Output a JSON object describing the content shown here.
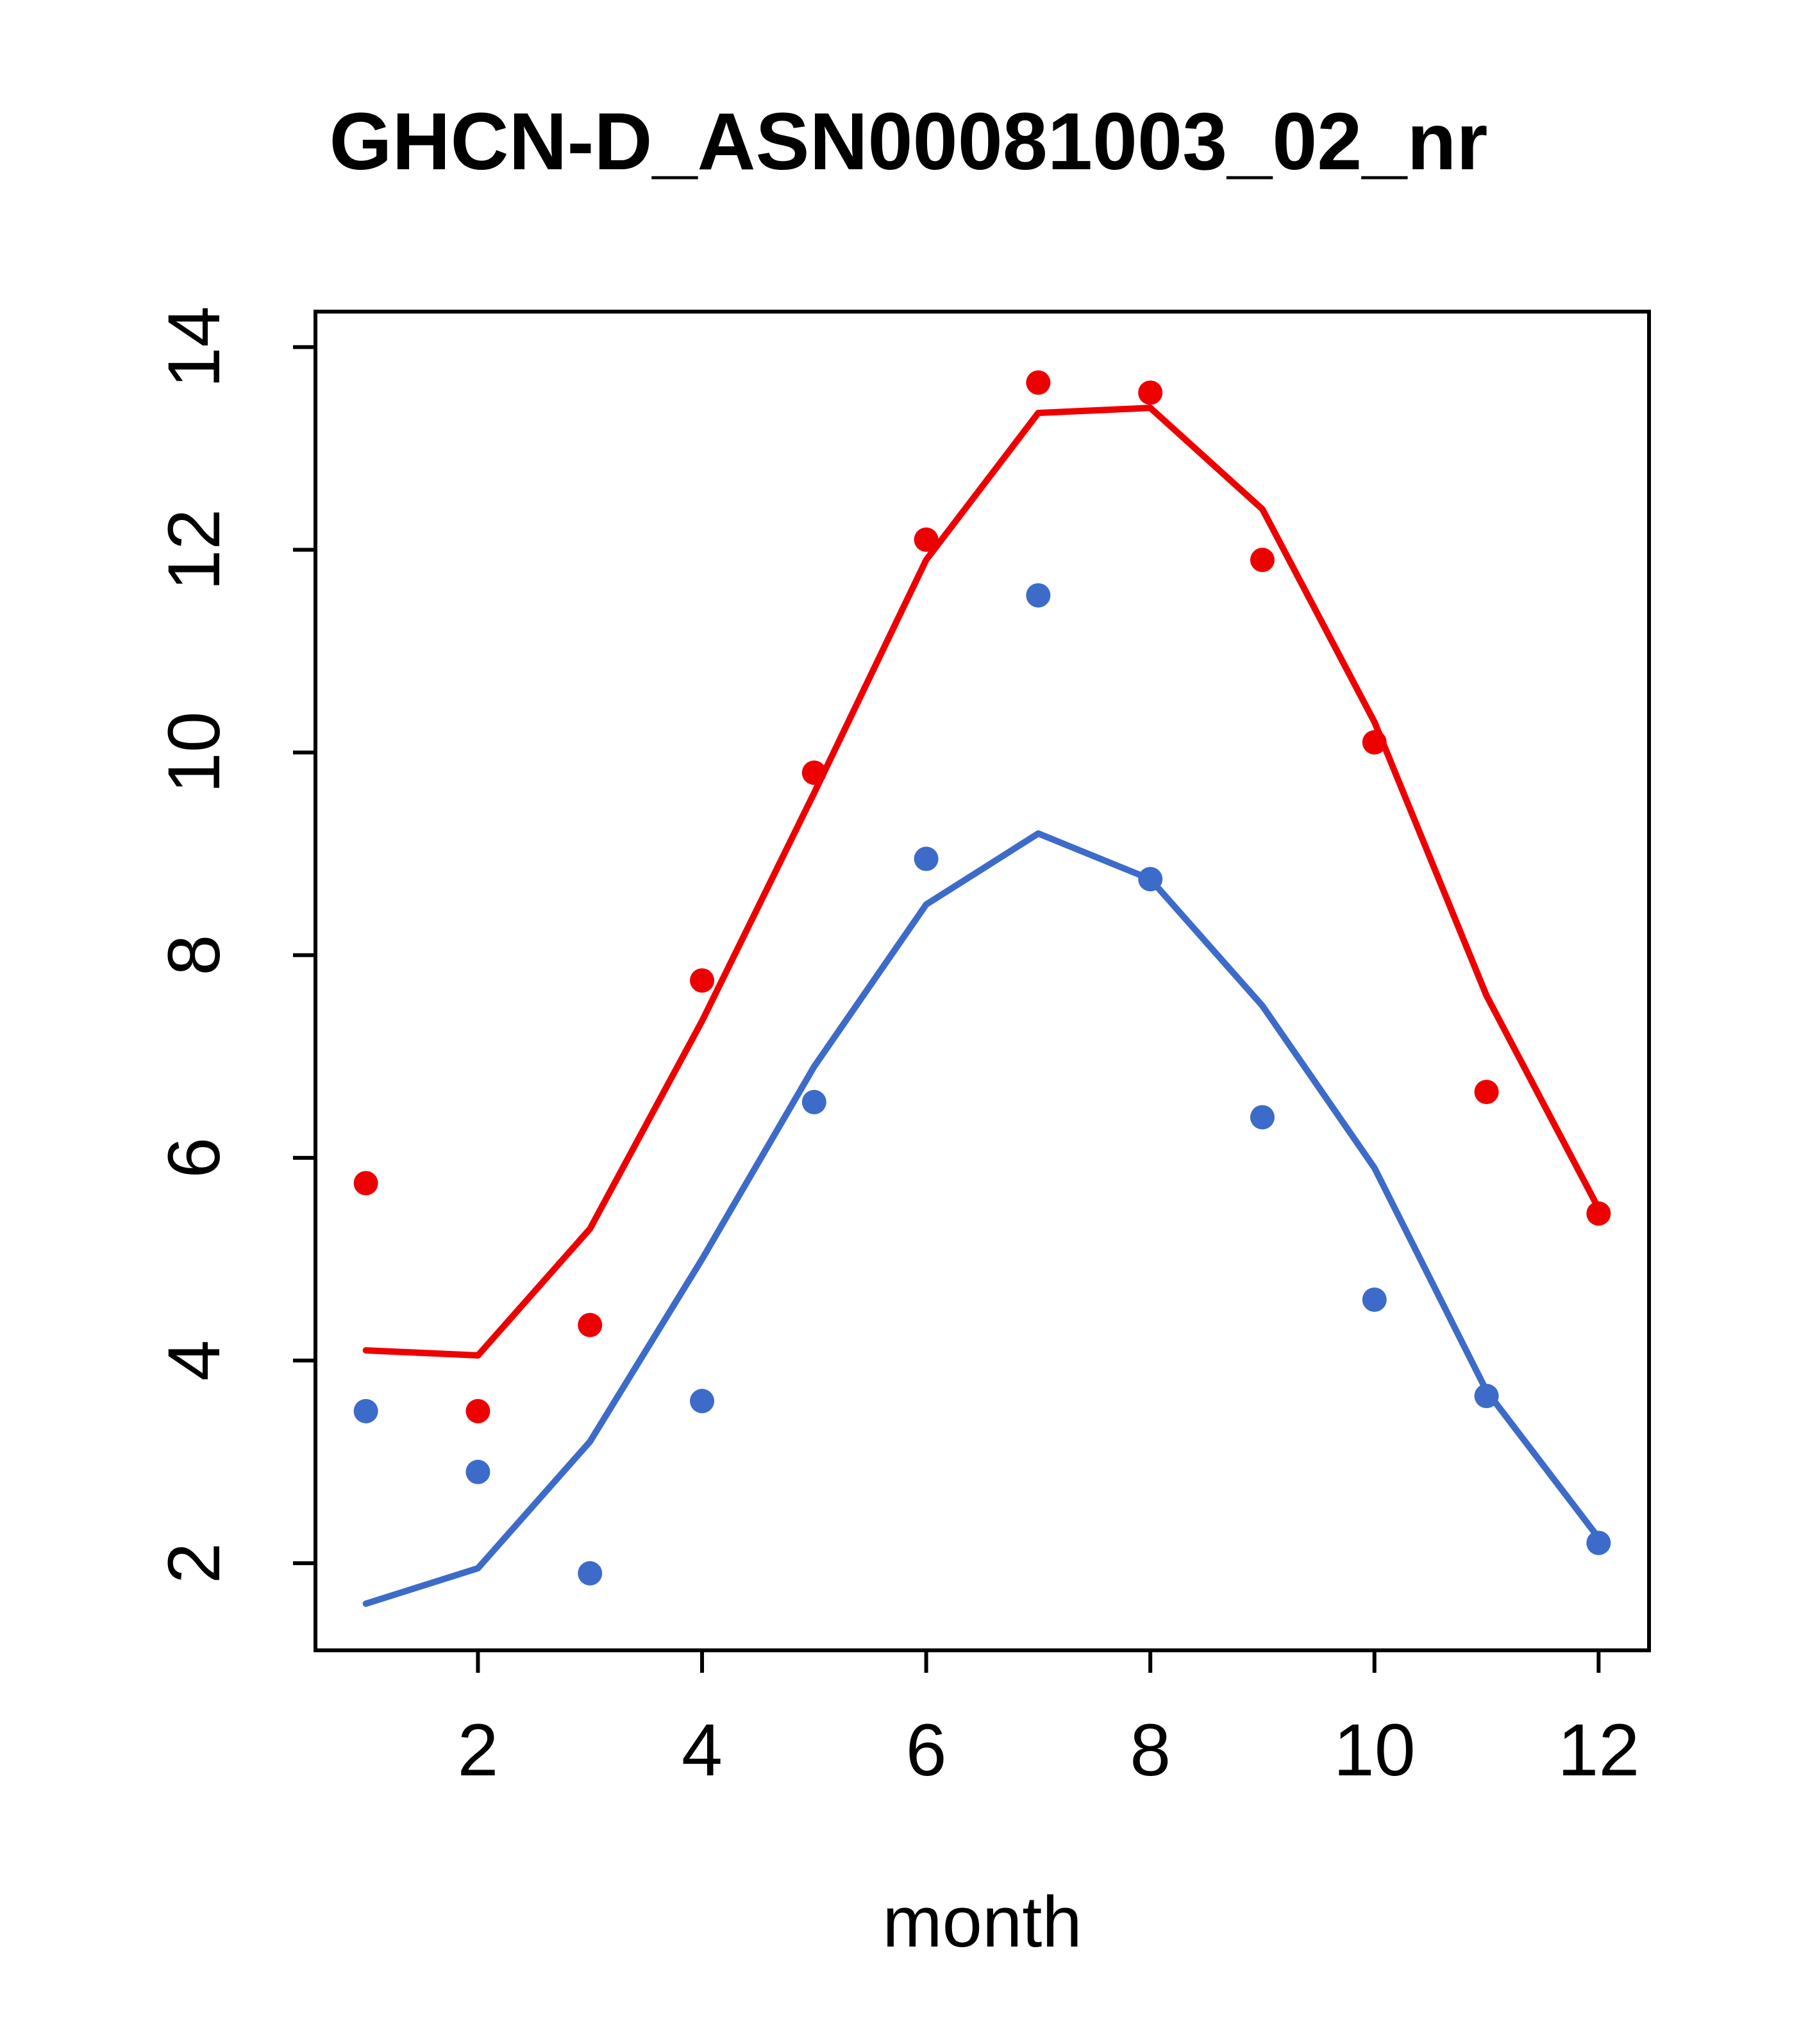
{
  "title": "GHCN-D_ASN00081003_02_nr",
  "colors": {
    "red": "#ee0000",
    "blue": "#3c6bc9",
    "axis": "#000000",
    "background": "#ffffff"
  },
  "chart_data": {
    "type": "line",
    "title": "GHCN-D_ASN00081003_02_nr",
    "xlabel": "month",
    "ylabel": "",
    "x": [
      1,
      2,
      3,
      4,
      5,
      6,
      7,
      8,
      9,
      10,
      11,
      12
    ],
    "x_ticks": [
      2,
      4,
      6,
      8,
      10,
      12
    ],
    "y_ticks": [
      2,
      4,
      6,
      8,
      10,
      12,
      14
    ],
    "xlim": [
      0.55,
      12.45
    ],
    "ylim": [
      1.14,
      14.35
    ],
    "grid": false,
    "legend": "none",
    "series": [
      {
        "name": "red-dots",
        "style": "points",
        "color": "red",
        "values": [
          5.75,
          3.5,
          4.35,
          7.75,
          9.8,
          12.1,
          13.65,
          13.55,
          11.9,
          10.1,
          6.65,
          5.45
        ]
      },
      {
        "name": "red-line",
        "style": "line",
        "color": "red",
        "values": [
          4.1,
          4.05,
          5.3,
          7.35,
          9.6,
          11.9,
          13.35,
          13.4,
          12.4,
          10.3,
          7.6,
          5.5
        ]
      },
      {
        "name": "blue-dots",
        "style": "points",
        "color": "blue",
        "values": [
          3.5,
          2.9,
          1.9,
          3.6,
          6.55,
          8.95,
          11.55,
          8.75,
          6.4,
          4.6,
          3.65,
          2.2
        ]
      },
      {
        "name": "blue-line",
        "style": "line",
        "color": "blue",
        "values": [
          1.6,
          1.95,
          3.2,
          5.0,
          6.9,
          8.5,
          9.2,
          8.75,
          7.5,
          5.9,
          3.7,
          2.25
        ]
      }
    ]
  }
}
